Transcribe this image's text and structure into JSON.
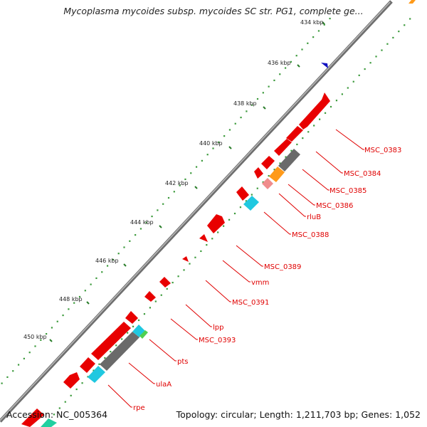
{
  "title": "Mycoplasma mycoides subsp. mycoides SC str. PG1, complete ge...",
  "footer": {
    "accession": "Accession: NC_005364",
    "stats": "Topology: circular; Length: 1,211,703 bp; Genes: 1,052"
  },
  "scale": {
    "ticks": [
      {
        "label": "434 kbp"
      },
      {
        "label": "436 kbp"
      },
      {
        "label": "438 kbp"
      },
      {
        "label": "440 kbp"
      },
      {
        "label": "442 kbp"
      },
      {
        "label": "444 kbp"
      },
      {
        "label": "446 kbp"
      },
      {
        "label": "448 kbp"
      },
      {
        "label": "450 kbp"
      }
    ]
  },
  "gene_labels": [
    {
      "text": "MSC_0383"
    },
    {
      "text": "MSC_0384"
    },
    {
      "text": "MSC_0385"
    },
    {
      "text": "MSC_0386"
    },
    {
      "text": "rluB"
    },
    {
      "text": "MSC_0388"
    },
    {
      "text": "MSC_0389"
    },
    {
      "text": "vmm"
    },
    {
      "text": "MSC_0391"
    },
    {
      "text": "lpp"
    },
    {
      "text": "MSC_0393"
    },
    {
      "text": "pts"
    },
    {
      "text": "ulaA"
    },
    {
      "text": "rpe"
    }
  ],
  "colors": {
    "cds": "#e80000",
    "cds_dark": "#b40000",
    "backbone": "#8c8c8c",
    "gc_dots": "#3c9a3c",
    "label": "#e00000",
    "blue_marker": "#1010c0",
    "orange": "#ff9a1a",
    "grey_feature": "#6a6a6a",
    "pink_feature": "#f08c8c",
    "cyan_feature": "#20c8e0",
    "green_feature": "#50d050"
  }
}
